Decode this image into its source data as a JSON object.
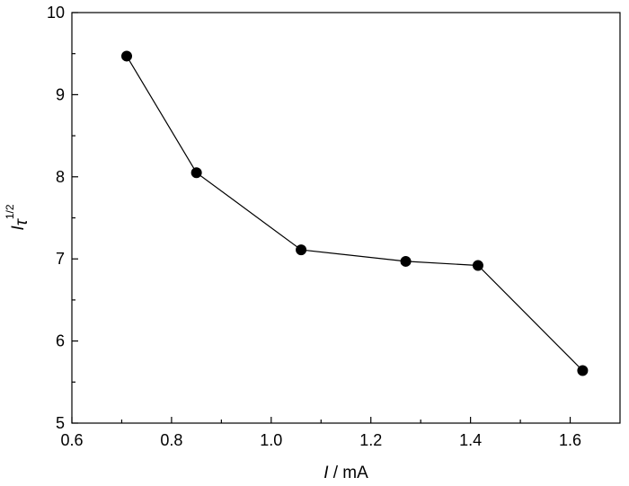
{
  "chart_data": {
    "type": "line",
    "x": [
      0.71,
      0.85,
      1.06,
      1.27,
      1.415,
      1.625
    ],
    "series": [
      {
        "values": [
          9.47,
          8.05,
          7.11,
          6.97,
          6.92,
          5.64
        ]
      }
    ],
    "xlim": [
      0.6,
      1.7
    ],
    "ylim": [
      5,
      10
    ],
    "x_ticks": [
      0.6,
      0.8,
      1.0,
      1.2,
      1.4,
      1.6
    ],
    "x_tick_labels": [
      "0.6",
      "0.8",
      "1.0",
      "1.2",
      "1.4",
      "1.6"
    ],
    "y_ticks": [
      5,
      6,
      7,
      8,
      9,
      10
    ],
    "y_tick_labels": [
      "5",
      "6",
      "7",
      "8",
      "9",
      "10"
    ],
    "xlabel": {
      "symbol": "I",
      "rest": " / mA"
    },
    "ylabel": {
      "symbol": "I",
      "sub": "τ",
      "sup": "1/2"
    },
    "grid": false,
    "colors": {
      "line": "#000000",
      "marker": "#000000"
    }
  }
}
